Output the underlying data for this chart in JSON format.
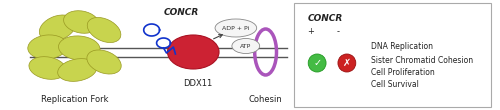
{
  "bg_color": "#ffffff",
  "dna_line_color": "#555555",
  "replication_fork_label": "Replication Fork",
  "cohesin_label": "Cohesin",
  "ddx11_label": "DDX11",
  "concr_label": "CONCR",
  "adp_label": "ADP + Pi",
  "atp_label": "ATP",
  "legend_title": "CONCR",
  "legend_plus": "+",
  "legend_minus": "-",
  "legend_items": [
    "DNA Replication",
    "Sister Chromatid Cohesion",
    "Cell Proliferation",
    "Cell Survival"
  ],
  "green_check_color": "#44bb44",
  "red_x_color": "#cc2222",
  "fork_blob_color": "#c8d44e",
  "fork_blob_edge": "#999922",
  "ddx11_color": "#cc2233",
  "ddx11_edge": "#aa1122",
  "concr_color": "#1133cc",
  "cohesin_color": "#aa55bb",
  "arrow_color": "#444444"
}
